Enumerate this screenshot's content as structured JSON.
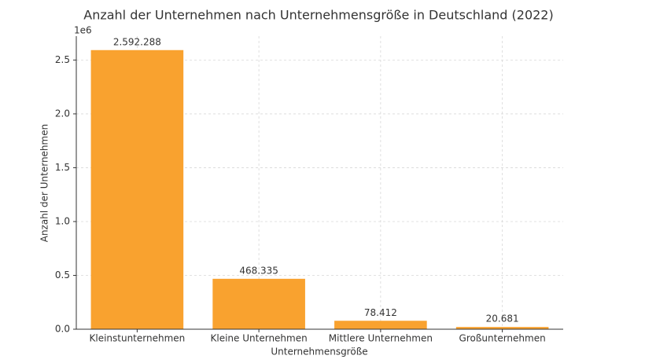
{
  "chart_data": {
    "type": "bar",
    "title": "Anzahl der Unternehmen nach Unternehmensgröße in Deutschland (2022)",
    "x_label": "Unternehmensgröße",
    "y_label": "Anzahl der Unternehmen",
    "y_offset_label": "1e6",
    "categories": [
      "Kleinstunternehmen",
      "Kleine Unternehmen",
      "Mittlere Unternehmen",
      "Großunternehmen"
    ],
    "values": [
      2592288,
      468335,
      78412,
      20681
    ],
    "value_labels": [
      "2.592.288",
      "468.335",
      "78.412",
      "20.681"
    ],
    "color": "#f9a22f",
    "ylim": [
      0,
      2721902
    ],
    "yticks": [
      {
        "value": 0,
        "label": "0.0"
      },
      {
        "value": 500000,
        "label": "0.5"
      },
      {
        "value": 1000000,
        "label": "1.0"
      },
      {
        "value": 1500000,
        "label": "1.5"
      },
      {
        "value": 2000000,
        "label": "2.0"
      },
      {
        "value": 2500000,
        "label": "2.5"
      }
    ],
    "grid": true
  }
}
